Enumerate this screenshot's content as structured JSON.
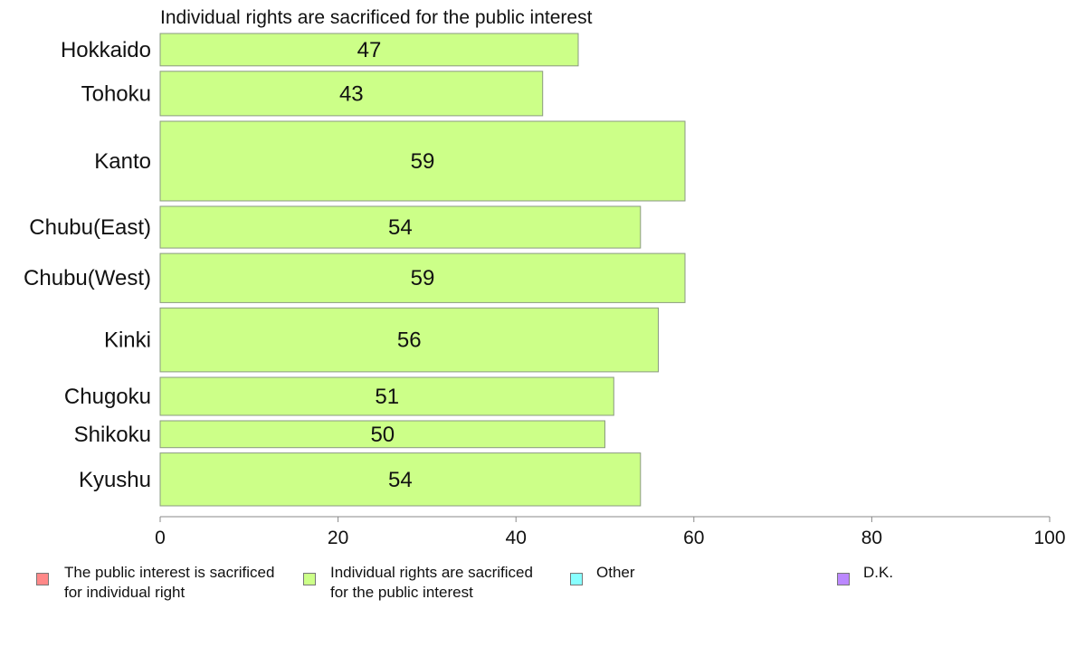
{
  "chart_data": {
    "type": "bar",
    "orientation": "horizontal",
    "title": "Individual rights are sacrificed for the public interest",
    "categories": [
      "Hokkaido",
      "Tohoku",
      "Kanto",
      "Chubu(East)",
      "Chubu(West)",
      "Kinki",
      "Chugoku",
      "Shikoku",
      "Kyushu"
    ],
    "category_weights": [
      35,
      48,
      86,
      45,
      53,
      69,
      41,
      29,
      57
    ],
    "series": [
      {
        "name": "Individual rights are sacrificed for the public interest",
        "values": [
          47,
          43,
          59,
          54,
          59,
          56,
          51,
          50,
          54
        ],
        "labels": [
          "47",
          "43",
          "59",
          "54",
          "59",
          "56",
          "51",
          "50",
          "54"
        ],
        "color": "#ccff88"
      }
    ],
    "xlim": [
      0,
      100
    ],
    "xticks": [
      0,
      20,
      40,
      60,
      80,
      100
    ],
    "xtick_labels": [
      "0",
      "20",
      "40",
      "60",
      "80",
      "100"
    ],
    "grid": false,
    "legend_position": "bottom"
  },
  "legend": [
    {
      "label": "The public interest is sacrificed\nfor individual right",
      "color": "#ff8888"
    },
    {
      "label": "Individual rights are sacrificed\nfor the public interest",
      "color": "#ccff88"
    },
    {
      "label": "Other",
      "color": "#88ffff"
    },
    {
      "label": "D.K.",
      "color": "#bb88ff"
    }
  ]
}
